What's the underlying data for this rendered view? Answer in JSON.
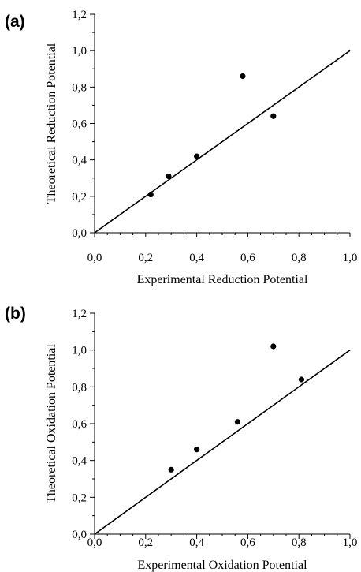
{
  "chart_data": [
    {
      "type": "scatter",
      "panel_label": "(a)",
      "xlabel": "Experimental Reduction Potential",
      "ylabel": "Theoretical Reduction Potential",
      "xlim": [
        0,
        1
      ],
      "ylim": [
        0,
        1.2
      ],
      "xticks": [
        "0,0",
        "0,2",
        "0,4",
        "0,6",
        "0,8",
        "1,0"
      ],
      "yticks": [
        "0,0",
        "0,2",
        "0,4",
        "0,6",
        "0,8",
        "1,0",
        "1,2"
      ],
      "reference_line": {
        "x": [
          0,
          1
        ],
        "y": [
          0,
          1
        ]
      },
      "points": [
        {
          "x": 0.22,
          "y": 0.21
        },
        {
          "x": 0.29,
          "y": 0.31
        },
        {
          "x": 0.4,
          "y": 0.42
        },
        {
          "x": 0.58,
          "y": 0.86
        },
        {
          "x": 0.7,
          "y": 0.64
        }
      ]
    },
    {
      "type": "scatter",
      "panel_label": "(b)",
      "xlabel": "Experimental Oxidation Potential",
      "ylabel": "Theoretical Oxidation Potential",
      "xlim": [
        0,
        1
      ],
      "ylim": [
        0,
        1.2
      ],
      "xticks": [
        "0,0",
        "0,2",
        "0,4",
        "0,6",
        "0,8",
        "1,0"
      ],
      "yticks": [
        "0,0",
        "0,2",
        "0,4",
        "0,6",
        "0,8",
        "1,0",
        "1,2"
      ],
      "reference_line": {
        "x": [
          0,
          1
        ],
        "y": [
          0,
          1
        ]
      },
      "points": [
        {
          "x": 0.3,
          "y": 0.35
        },
        {
          "x": 0.4,
          "y": 0.46
        },
        {
          "x": 0.56,
          "y": 0.61
        },
        {
          "x": 0.7,
          "y": 1.02
        },
        {
          "x": 0.81,
          "y": 0.84
        }
      ]
    }
  ]
}
